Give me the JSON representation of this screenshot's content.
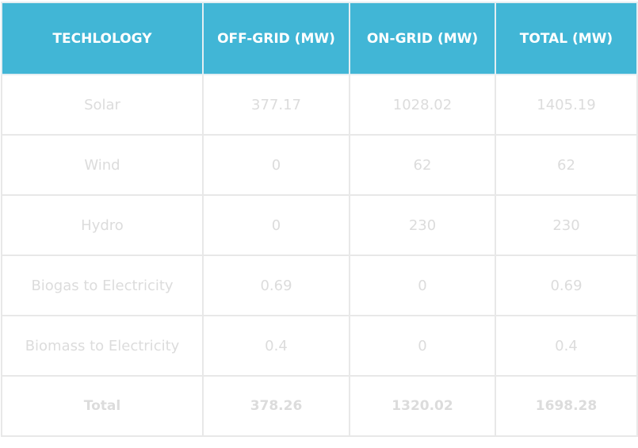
{
  "table": {
    "header": [
      "TECHLOLOGY",
      "OFF-GRID (MW)",
      "ON-GRID (MW)",
      "TOTAL (MW)"
    ],
    "rows": [
      [
        "Solar",
        "377.17",
        "1028.02",
        "1405.19"
      ],
      [
        "Wind",
        "0",
        "62",
        "62"
      ],
      [
        "Hydro",
        "0",
        "230",
        "230"
      ],
      [
        "Biogas to Electricity",
        "0.69",
        "0",
        "0.69"
      ],
      [
        "Biomass to Electricity",
        "0.4",
        "0",
        "0.4"
      ],
      [
        "Total",
        "378.26",
        "1320.02",
        "1698.28"
      ]
    ]
  }
}
